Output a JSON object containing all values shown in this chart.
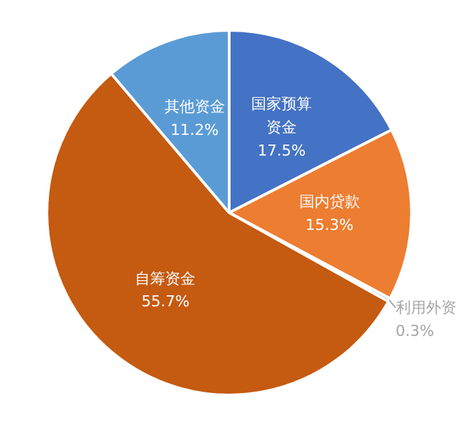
{
  "chart_data": {
    "type": "pie",
    "categories": [
      "国家预算资金",
      "国内贷款",
      "利用外资",
      "自筹资金",
      "其他资金"
    ],
    "values": [
      17.5,
      15.3,
      0.3,
      55.7,
      11.2
    ],
    "value_labels": [
      "17.5%",
      "15.3%",
      "0.3%",
      "55.7%",
      "11.2%"
    ],
    "colors": [
      "#4472c4",
      "#ed7d31",
      "#a5a5a5",
      "#c55a11",
      "#5b9bd5"
    ]
  }
}
